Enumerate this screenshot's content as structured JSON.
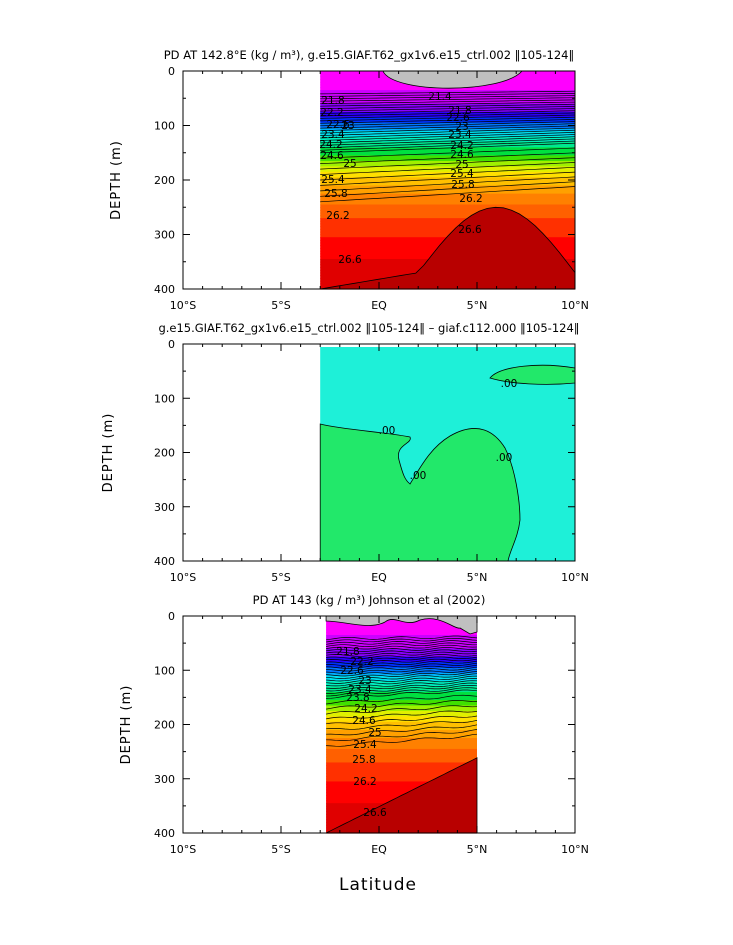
{
  "figure": {
    "xlabel": "Latitude"
  },
  "chart_data": [
    {
      "type": "heatmap",
      "subtype": "filled-contour",
      "title": "PD AT 142.8°E (kg / m³), g.e15.GIAF.T62_gx1v6.e15_ctrl.002 ‖105-124‖",
      "ylabel": "DEPTH (m)",
      "xlim": [
        -10,
        10
      ],
      "ylim": [
        0,
        400
      ],
      "y_inverted": true,
      "x_ticks": [
        "10°S",
        "5°S",
        "EQ",
        "5°N",
        "10°N"
      ],
      "y_ticks": [
        "0",
        "100",
        "200",
        "300",
        "400"
      ],
      "data_x_range": [
        -3.0,
        10
      ],
      "contour_labels": [
        "21.4",
        "21.8",
        "22.2",
        "22.6",
        "23",
        "23.4",
        "23.8",
        "24.2",
        "24.6",
        "25",
        "25.4",
        "25.8",
        "26.2",
        "26.6"
      ],
      "contours": [
        {
          "level": 21.4,
          "depth": [
            0,
            0
          ]
        },
        {
          "level": 21.8,
          "depth": [
            58,
            40
          ]
        },
        {
          "level": 22.6,
          "depth": [
            80,
            64
          ]
        },
        {
          "level": 23.4,
          "depth": [
            100,
            85
          ]
        },
        {
          "level": 24.2,
          "depth": [
            130,
            120
          ]
        },
        {
          "level": 25.0,
          "depth": [
            170,
            160
          ]
        },
        {
          "level": 25.8,
          "depth": [
            218,
            208
          ]
        },
        {
          "level": 26.2,
          "depth": [
            262,
            238
          ]
        },
        {
          "level": 26.6,
          "depth": [
            360,
            300
          ]
        }
      ]
    },
    {
      "type": "heatmap",
      "subtype": "filled-contour",
      "title": "g.e15.GIAF.T62_gx1v6.e15_ctrl.002 ‖105-124‖ – giaf.c112.000 ‖105-124‖",
      "ylabel": "DEPTH (m)",
      "xlim": [
        -10,
        10
      ],
      "ylim": [
        0,
        400
      ],
      "y_inverted": true,
      "x_ticks": [
        "10°S",
        "5°S",
        "EQ",
        "5°N",
        "10°N"
      ],
      "y_ticks": [
        "0",
        "100",
        "200",
        "300",
        "400"
      ],
      "data_x_range": [
        -3.0,
        10
      ],
      "contour_labels": [
        ".00",
        ".00",
        ".00",
        ".00",
        ".00"
      ],
      "colors": {
        "positive": "#22e86a",
        "negative": "#1ef0d8"
      }
    },
    {
      "type": "heatmap",
      "subtype": "filled-contour",
      "title": "PD AT 143 (kg / m³) Johnson et al (2002)",
      "ylabel": "DEPTH (m)",
      "xlim": [
        -10,
        10
      ],
      "ylim": [
        0,
        400
      ],
      "y_inverted": true,
      "x_ticks": [
        "10°S",
        "5°S",
        "EQ",
        "5°N",
        "10°N"
      ],
      "y_ticks": [
        "0",
        "100",
        "200",
        "300",
        "400"
      ],
      "data_x_range": [
        -2.7,
        5
      ],
      "contour_labels": [
        "21.8",
        "22.2",
        "22.6",
        "23",
        "23.4",
        "23.8",
        "24.2",
        "24.6",
        "25",
        "25.4",
        "25.8",
        "26.2",
        "26.6"
      ],
      "contours": [
        {
          "level": 21.8,
          "depth": [
            60,
            60
          ]
        },
        {
          "level": 22.6,
          "depth": [
            82,
            82
          ]
        },
        {
          "level": 23.4,
          "depth": [
            102,
            100
          ]
        },
        {
          "level": 24.2,
          "depth": [
            135,
            125
          ]
        },
        {
          "level": 25.0,
          "depth": [
            170,
            155
          ]
        },
        {
          "level": 25.8,
          "depth": [
            215,
            200
          ]
        },
        {
          "level": 26.2,
          "depth": [
            245,
            230
          ]
        },
        {
          "level": 26.6,
          "depth": [
            400,
            260
          ]
        }
      ]
    }
  ],
  "colormap": [
    "#ff00ff",
    "#cc00ff",
    "#8a00ff",
    "#2b00ff",
    "#0030ff",
    "#0077ff",
    "#00b0ff",
    "#00e0f0",
    "#00f0c0",
    "#00e890",
    "#00e040",
    "#40e000",
    "#a0f000",
    "#e0f000",
    "#ffe000",
    "#ffc000",
    "#ffa000",
    "#ff8000",
    "#ff6000",
    "#ff3000",
    "#ff0000",
    "#e00000",
    "#c80000"
  ],
  "land_color": "#c0c0c0"
}
